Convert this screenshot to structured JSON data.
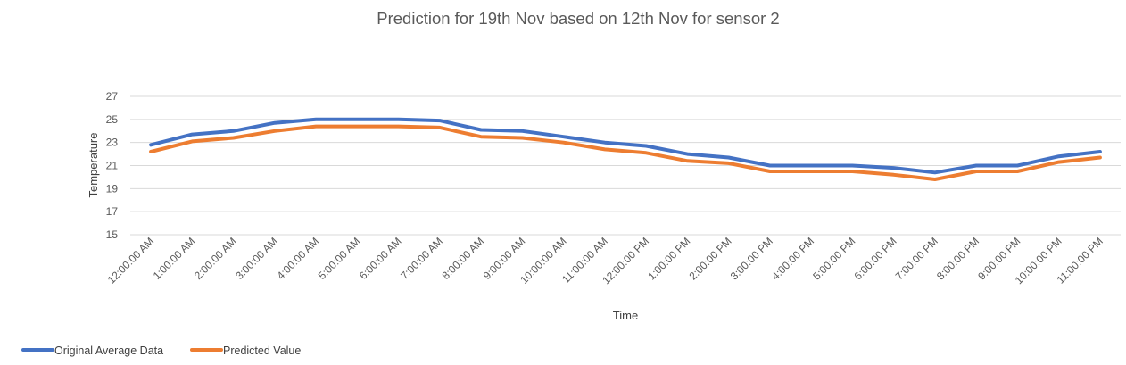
{
  "chart_data": {
    "type": "line",
    "title": "Prediction for 19th Nov based on 12th Nov for sensor 2",
    "xlabel": "Time",
    "ylabel": "Temperature",
    "ylim": [
      15,
      27
    ],
    "yticks": [
      15,
      17,
      19,
      21,
      23,
      25,
      27
    ],
    "grid": true,
    "legend_position": "bottom-left",
    "categories": [
      "12:00:00 AM",
      "1:00:00 AM",
      "2:00:00 AM",
      "3:00:00 AM",
      "4:00:00 AM",
      "5:00:00 AM",
      "6:00:00 AM",
      "7:00:00 AM",
      "8:00:00 AM",
      "9:00:00 AM",
      "10:00:00 AM",
      "11:00:00 AM",
      "12:00:00 PM",
      "1:00:00 PM",
      "2:00:00 PM",
      "3:00:00 PM",
      "4:00:00 PM",
      "5:00:00 PM",
      "6:00:00 PM",
      "7:00:00 PM",
      "8:00:00 PM",
      "9:00:00 PM",
      "10:00:00 PM",
      "11:00:00 PM"
    ],
    "series": [
      {
        "name": "Original Average Data",
        "color": "#4472c4",
        "values": [
          22.8,
          23.7,
          24.0,
          24.7,
          25.0,
          25.0,
          25.0,
          24.9,
          24.1,
          24.0,
          23.5,
          23.0,
          22.7,
          22.0,
          21.7,
          21.0,
          21.0,
          21.0,
          20.8,
          20.4,
          21.0,
          21.0,
          21.8,
          22.2
        ]
      },
      {
        "name": "Predicted Value",
        "color": "#ed7d31",
        "values": [
          22.2,
          23.1,
          23.4,
          24.0,
          24.4,
          24.4,
          24.4,
          24.3,
          23.5,
          23.4,
          23.0,
          22.4,
          22.1,
          21.4,
          21.2,
          20.5,
          20.5,
          20.5,
          20.2,
          19.8,
          20.5,
          20.5,
          21.3,
          21.7
        ]
      }
    ]
  }
}
